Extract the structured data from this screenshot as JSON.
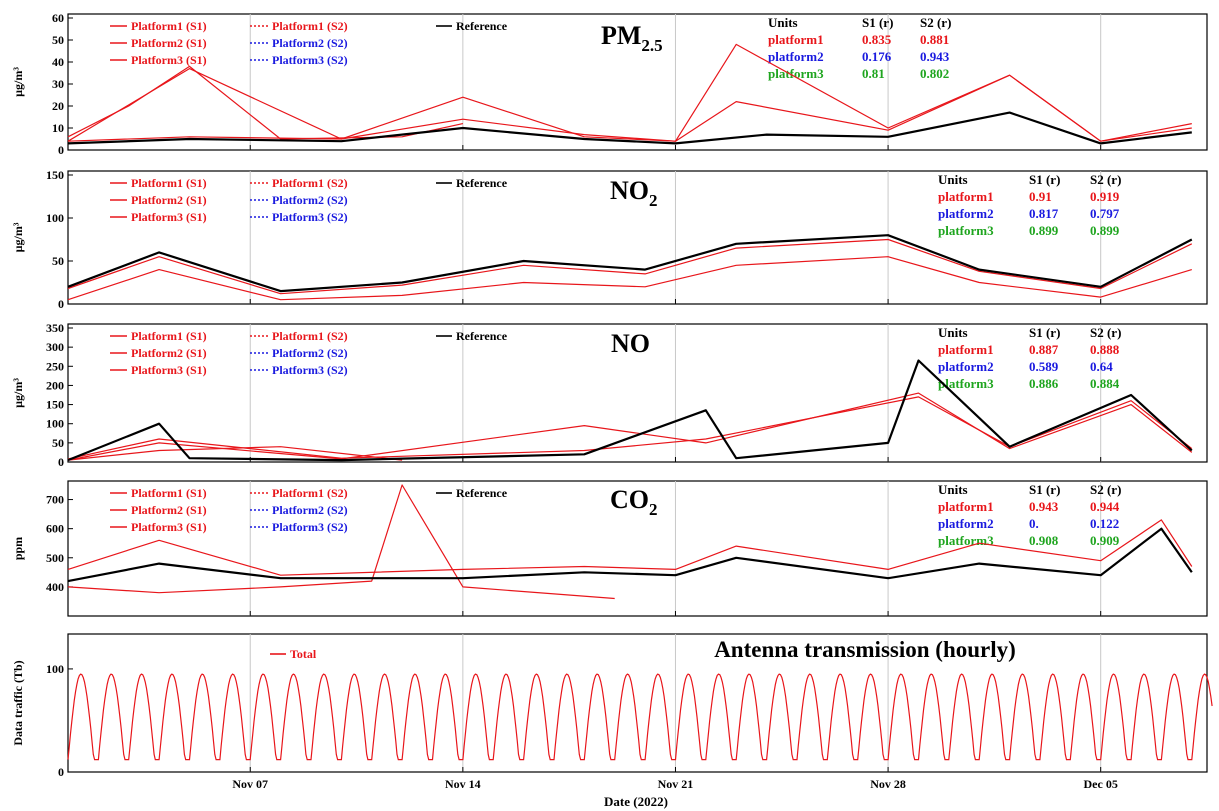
{
  "figure": {
    "xlabel": "Date (2022)",
    "date_ticks": [
      "Nov 07",
      "Nov 14",
      "Nov 21",
      "Nov 28",
      "Dec 05"
    ]
  },
  "colors": {
    "platform1": "#e8161b",
    "platform2": "#1a1adf",
    "platform3": "#1fa51f",
    "reference": "#000000"
  },
  "chart_data": [
    {
      "type": "line",
      "title": "PM2.5",
      "title_main": "PM",
      "title_sub": "2.5",
      "ylabel": "µg/m³",
      "ylim": [
        0,
        60
      ],
      "yticks": [
        "0",
        "10",
        "20",
        "30",
        "40",
        "50",
        "60"
      ],
      "legend": {
        "s1": [
          "Platform1 (S1)",
          "Platform2 (S1)",
          "Platform3 (S1)"
        ],
        "s2": [
          "Platform1 (S2)",
          "Platform2 (S2)",
          "Platform3 (S2)"
        ],
        "ref": "Reference"
      },
      "stats": {
        "header": [
          "Units",
          "S1 (r)",
          "S2 (r)"
        ],
        "rows": [
          {
            "name": "platform1",
            "s1": "0.835",
            "s2": "0.881"
          },
          {
            "name": "platform2",
            "s1": "0.176",
            "s2": "0.943"
          },
          {
            "name": "platform3",
            "s1": "0.81",
            "s2": "0.802"
          }
        ]
      },
      "series": [
        {
          "name": "Reference",
          "x": [
            "2022-11-01",
            "2022-11-05",
            "2022-11-10",
            "2022-11-14",
            "2022-11-18",
            "2022-11-21",
            "2022-11-24",
            "2022-11-28",
            "2022-12-02",
            "2022-12-05",
            "2022-12-08"
          ],
          "values": [
            3,
            5,
            4,
            10,
            5,
            3,
            7,
            6,
            17,
            3,
            8
          ]
        },
        {
          "name": "Platform1 (S1)",
          "x": [
            "2022-11-01",
            "2022-11-05",
            "2022-11-10",
            "2022-11-14",
            "2022-11-18",
            "2022-11-21",
            "2022-11-23",
            "2022-11-28",
            "2022-12-02",
            "2022-12-05",
            "2022-12-08"
          ],
          "values": [
            4,
            6,
            5,
            14,
            7,
            4,
            48,
            10,
            34,
            4,
            12
          ]
        },
        {
          "name": "Platform2 (S1)",
          "x": [
            "2022-11-01",
            "2022-11-03",
            "2022-11-05",
            "2022-11-08",
            "2022-11-12",
            "2022-11-14"
          ],
          "values": [
            6,
            20,
            38,
            5,
            6,
            12
          ]
        },
        {
          "name": "Platform3 (S1)",
          "x": [
            "2022-11-01",
            "2022-11-05",
            "2022-11-10",
            "2022-11-14",
            "2022-11-18",
            "2022-11-21",
            "2022-11-23",
            "2022-11-28",
            "2022-12-02",
            "2022-12-05",
            "2022-12-08"
          ],
          "values": [
            4,
            37,
            5,
            24,
            6,
            4,
            22,
            9,
            34,
            4,
            10
          ]
        }
      ]
    },
    {
      "type": "line",
      "title": "NO2",
      "title_main": "NO",
      "title_sub": "2",
      "ylabel": "µg/m³",
      "ylim": [
        0,
        150
      ],
      "yticks": [
        "0",
        "50",
        "100",
        "150"
      ],
      "legend": {
        "s1": [
          "Platform1 (S1)",
          "Platform2 (S1)",
          "Platform3 (S1)"
        ],
        "s2": [
          "Platform1 (S2)",
          "Platform2 (S2)",
          "Platform3 (S2)"
        ],
        "ref": "Reference"
      },
      "stats": {
        "header": [
          "Units",
          "S1 (r)",
          "S2 (r)"
        ],
        "rows": [
          {
            "name": "platform1",
            "s1": "0.91",
            "s2": "0.919"
          },
          {
            "name": "platform2",
            "s1": "0.817",
            "s2": "0.797"
          },
          {
            "name": "platform3",
            "s1": "0.899",
            "s2": "0.899"
          }
        ]
      },
      "series": [
        {
          "name": "Reference",
          "x": [
            "2022-11-01",
            "2022-11-04",
            "2022-11-08",
            "2022-11-12",
            "2022-11-16",
            "2022-11-20",
            "2022-11-23",
            "2022-11-28",
            "2022-12-01",
            "2022-12-05",
            "2022-12-08"
          ],
          "values": [
            20,
            60,
            15,
            25,
            50,
            40,
            70,
            80,
            40,
            20,
            75
          ]
        },
        {
          "name": "Platform1 (S1)",
          "x": [
            "2022-11-01",
            "2022-11-04",
            "2022-11-08",
            "2022-11-12",
            "2022-11-16",
            "2022-11-20",
            "2022-11-23",
            "2022-11-28",
            "2022-12-01",
            "2022-12-05",
            "2022-12-08"
          ],
          "values": [
            18,
            55,
            12,
            22,
            45,
            35,
            65,
            75,
            38,
            18,
            70
          ]
        },
        {
          "name": "Platform3 (S1)",
          "x": [
            "2022-11-01",
            "2022-11-04",
            "2022-11-08",
            "2022-11-12",
            "2022-11-16",
            "2022-11-20",
            "2022-11-23",
            "2022-11-28",
            "2022-12-01",
            "2022-12-05",
            "2022-12-08"
          ],
          "values": [
            5,
            40,
            5,
            10,
            25,
            20,
            45,
            55,
            25,
            8,
            40
          ]
        }
      ]
    },
    {
      "type": "line",
      "title": "NO",
      "title_main": "NO",
      "title_sub": "",
      "ylabel": "µg/m³",
      "ylim": [
        0,
        350
      ],
      "yticks": [
        "0",
        "50",
        "100",
        "150",
        "200",
        "250",
        "300",
        "350"
      ],
      "legend": {
        "s1": [
          "Platform1 (S1)",
          "Platform2 (S1)",
          "Platform3 (S1)"
        ],
        "s2": [
          "Platform1 (S2)",
          "Platform2 (S2)",
          "Platform3 (S2)"
        ],
        "ref": "Reference"
      },
      "stats": {
        "header": [
          "Units",
          "S1 (r)",
          "S2 (r)"
        ],
        "rows": [
          {
            "name": "platform1",
            "s1": "0.887",
            "s2": "0.888"
          },
          {
            "name": "platform2",
            "s1": "0.589",
            "s2": "0.64"
          },
          {
            "name": "platform3",
            "s1": "0.886",
            "s2": "0.884"
          }
        ]
      },
      "series": [
        {
          "name": "Reference",
          "x": [
            "2022-11-01",
            "2022-11-04",
            "2022-11-05",
            "2022-11-10",
            "2022-11-18",
            "2022-11-22",
            "2022-11-23",
            "2022-11-28",
            "2022-11-29",
            "2022-12-02",
            "2022-12-06",
            "2022-12-08"
          ],
          "values": [
            5,
            100,
            10,
            5,
            20,
            135,
            10,
            50,
            265,
            40,
            175,
            30
          ]
        },
        {
          "name": "Platform1 (S1)",
          "x": [
            "2022-11-01",
            "2022-11-04",
            "2022-11-10",
            "2022-11-18",
            "2022-11-22",
            "2022-11-29",
            "2022-12-02",
            "2022-12-06",
            "2022-12-08"
          ],
          "values": [
            8,
            60,
            10,
            30,
            60,
            170,
            40,
            160,
            35
          ]
        },
        {
          "name": "Platform2 (S1)",
          "x": [
            "2022-11-01",
            "2022-11-04",
            "2022-11-08",
            "2022-11-12"
          ],
          "values": [
            5,
            30,
            40,
            5
          ]
        },
        {
          "name": "Platform3 (S1)",
          "x": [
            "2022-11-01",
            "2022-11-04",
            "2022-11-10",
            "2022-11-18",
            "2022-11-22",
            "2022-11-29",
            "2022-12-02",
            "2022-12-06",
            "2022-12-08"
          ],
          "values": [
            5,
            50,
            8,
            95,
            50,
            180,
            35,
            150,
            25
          ]
        }
      ]
    },
    {
      "type": "line",
      "title": "CO2",
      "title_main": "CO",
      "title_sub": "2",
      "ylabel": "ppm",
      "ylim": [
        300,
        750
      ],
      "yticks": [
        "400",
        "500",
        "600",
        "700"
      ],
      "legend": {
        "s1": [
          "Platform1 (S1)",
          "Platform2 (S1)",
          "Platform3 (S1)"
        ],
        "s2": [
          "Platform1 (S2)",
          "Platform2 (S2)",
          "Platform3 (S2)"
        ],
        "ref": "Reference"
      },
      "stats": {
        "header": [
          "Units",
          "S1 (r)",
          "S2 (r)"
        ],
        "rows": [
          {
            "name": "platform1",
            "s1": "0.943",
            "s2": "0.944"
          },
          {
            "name": "platform2",
            "s1": "0.",
            "s2": "0.122"
          },
          {
            "name": "platform3",
            "s1": "0.908",
            "s2": "0.909"
          }
        ]
      },
      "series": [
        {
          "name": "Reference",
          "x": [
            "2022-11-01",
            "2022-11-04",
            "2022-11-08",
            "2022-11-14",
            "2022-11-18",
            "2022-11-21",
            "2022-11-23",
            "2022-11-28",
            "2022-12-01",
            "2022-12-05",
            "2022-12-07",
            "2022-12-08"
          ],
          "values": [
            420,
            480,
            430,
            430,
            450,
            440,
            500,
            430,
            480,
            440,
            600,
            450
          ]
        },
        {
          "name": "Platform2 (S1)",
          "x": [
            "2022-11-01",
            "2022-11-04",
            "2022-11-08",
            "2022-11-11",
            "2022-11-12",
            "2022-11-14",
            "2022-11-19"
          ],
          "values": [
            400,
            380,
            400,
            420,
            750,
            400,
            360
          ]
        },
        {
          "name": "Platform3 (S1)",
          "x": [
            "2022-11-01",
            "2022-11-04",
            "2022-11-08",
            "2022-11-14",
            "2022-11-18",
            "2022-11-21",
            "2022-11-23",
            "2022-11-28",
            "2022-12-01",
            "2022-12-05",
            "2022-12-07",
            "2022-12-08"
          ],
          "values": [
            460,
            560,
            440,
            460,
            470,
            460,
            540,
            460,
            550,
            490,
            630,
            470
          ]
        }
      ]
    },
    {
      "type": "line",
      "title": "Antenna transmission (hourly)",
      "ylabel": "Data traffic (Tb)",
      "ylim": [
        0,
        130
      ],
      "yticks": [
        "0",
        "100"
      ],
      "legend": {
        "total": "Total"
      },
      "series": [
        {
          "name": "Total",
          "x_start": "2022-11-01",
          "x_end": "2022-12-08",
          "period_days": 1,
          "min": 12,
          "max": 95
        }
      ]
    }
  ]
}
